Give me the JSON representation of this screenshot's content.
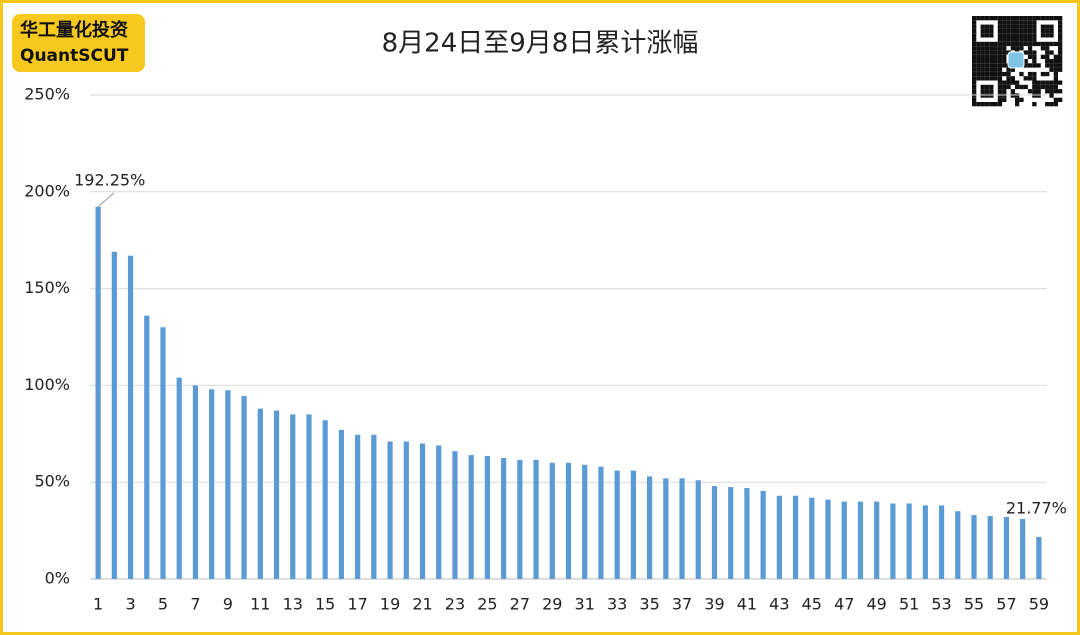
{
  "logo": {
    "name": "华工量化投资",
    "english": "QuantSCUT"
  },
  "chart_data": {
    "type": "bar",
    "title": "8月24日至9月8日累计涨幅",
    "categories": [
      "1",
      null,
      "3",
      null,
      "5",
      null,
      "7",
      null,
      "9",
      null,
      "11",
      null,
      "13",
      null,
      "15",
      null,
      "17",
      null,
      "19",
      null,
      "21",
      null,
      "23",
      null,
      "25",
      null,
      "27",
      null,
      "29",
      null,
      "31",
      null,
      "33",
      null,
      "35",
      null,
      "37",
      null,
      "39",
      null,
      "41",
      null,
      "43",
      null,
      "45",
      null,
      "47",
      null,
      "49",
      null,
      "51",
      null,
      "53",
      null,
      "55",
      null,
      "57",
      null,
      "59"
    ],
    "values": [
      192.25,
      169,
      167,
      136,
      130,
      104,
      100,
      98,
      97.5,
      94.5,
      88,
      87,
      85,
      85,
      82,
      77,
      74.5,
      74.5,
      71,
      71,
      70,
      69,
      66,
      64,
      63.5,
      62.5,
      61.5,
      61.5,
      60,
      60,
      59,
      58,
      56,
      56,
      53,
      52,
      52,
      51,
      48,
      47.5,
      47,
      45.5,
      43,
      43,
      42,
      41,
      40,
      40,
      40,
      39,
      39,
      38,
      38,
      35,
      33,
      32.5,
      32,
      31,
      21.77
    ],
    "value_labels": [
      "192.25%",
      null,
      null,
      null,
      null,
      null,
      null,
      null,
      null,
      null,
      null,
      null,
      null,
      null,
      null,
      null,
      null,
      null,
      null,
      null,
      null,
      null,
      null,
      null,
      null,
      null,
      null,
      null,
      null,
      null,
      null,
      null,
      null,
      null,
      null,
      null,
      null,
      null,
      null,
      null,
      null,
      null,
      null,
      null,
      null,
      null,
      null,
      null,
      null,
      null,
      null,
      null,
      null,
      null,
      null,
      null,
      null,
      null,
      "21.77%"
    ],
    "color": "#5b9bd5",
    "ylim": [
      0,
      250
    ],
    "yticks": [
      {
        "value": 0,
        "label": "0%"
      },
      {
        "value": 50,
        "label": "50%"
      },
      {
        "value": 100,
        "label": "100%"
      },
      {
        "value": 150,
        "label": "150%"
      },
      {
        "value": 200,
        "label": "200%"
      },
      {
        "value": 250,
        "label": "250%"
      }
    ],
    "grid": true
  }
}
